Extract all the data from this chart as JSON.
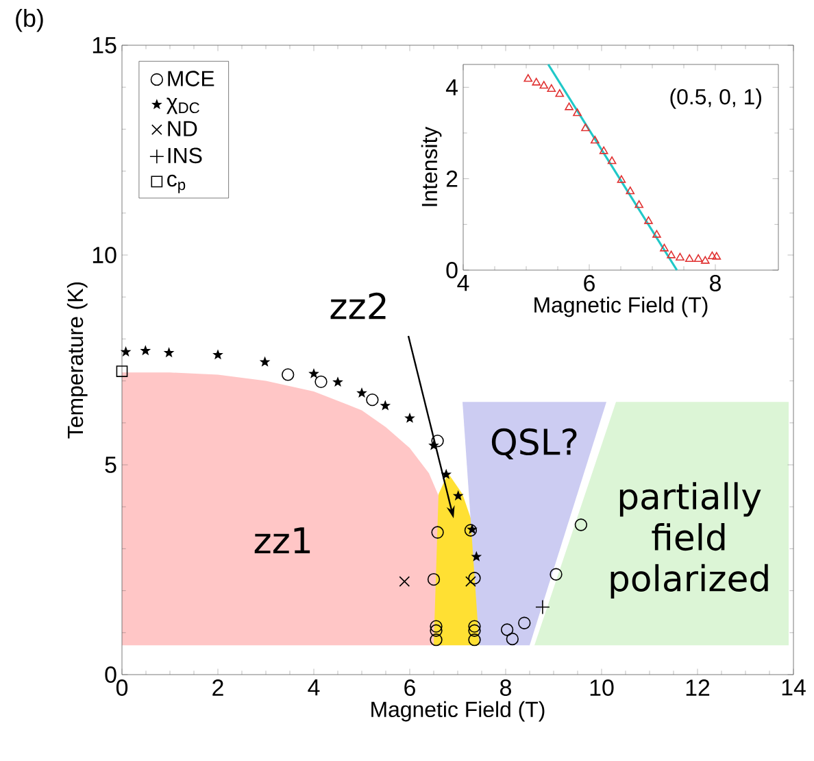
{
  "chart_data": [
    {
      "type": "scatter",
      "xlabel": "Magnetic Field (T)",
      "ylabel": "Temperature (K)",
      "xlim": [
        0,
        14
      ],
      "ylim": [
        0,
        15
      ],
      "xticks": [
        0,
        2,
        4,
        6,
        8,
        10,
        12,
        14
      ],
      "yticks": [
        0,
        5,
        10,
        15
      ],
      "legend": "top left",
      "series": [
        {
          "type": "scatter",
          "name": "MCE",
          "marker": "circle",
          "color": "#000000",
          "x": [
            3.46,
            4.15,
            5.22,
            6.58,
            6.58,
            7.27,
            6.5,
            7.35,
            6.55,
            6.55,
            6.55,
            7.35,
            7.35,
            7.35,
            8.03,
            8.14,
            8.39,
            9.05,
            9.57
          ],
          "values": [
            7.15,
            6.98,
            6.55,
            5.57,
            3.39,
            3.44,
            2.27,
            2.3,
            1.15,
            1.05,
            0.83,
            1.15,
            1.05,
            0.83,
            1.07,
            0.85,
            1.23,
            2.39,
            3.57
          ]
        },
        {
          "type": "scatter",
          "name": "χ$_{DC}$",
          "marker": "star",
          "color": "#000000",
          "x": [
            0.08,
            0.49,
            0.98,
            2.0,
            2.98,
            4.0,
            4.5,
            5.0,
            5.49,
            6.0,
            6.5,
            6.76,
            7.01,
            7.3,
            7.39
          ],
          "values": [
            7.69,
            7.72,
            7.67,
            7.62,
            7.45,
            7.17,
            6.97,
            6.71,
            6.41,
            6.11,
            5.46,
            4.77,
            4.26,
            3.46,
            2.81
          ]
        },
        {
          "type": "scatter",
          "name": "ND",
          "marker": "cross",
          "color": "#000000",
          "x": [
            5.89,
            7.27
          ],
          "values": [
            2.22,
            2.22
          ]
        },
        {
          "type": "scatter",
          "name": "INS",
          "marker": "plus",
          "color": "#000000",
          "x": [
            8.77
          ],
          "values": [
            1.61
          ]
        },
        {
          "type": "scatter",
          "name": "c$_{p}$",
          "marker": "square",
          "color": "#000000",
          "x": [
            0
          ],
          "values": [
            7.23
          ]
        }
      ],
      "annotations": [
        "(b)",
        "zz1",
        "zz2",
        "QSL?",
        "partially field polarized"
      ]
    },
    {
      "type": "scatter",
      "xlabel": "Magnetic Field (T)",
      "ylabel": "Intensity",
      "xlim": [
        4,
        9
      ],
      "ylim": [
        0,
        4.5
      ],
      "xticks": [
        4,
        6,
        8
      ],
      "yticks": [
        0,
        2,
        4
      ],
      "series": [
        {
          "type": "scatter",
          "marker": "triangle",
          "color": "#e03030",
          "x": [
            5.03,
            5.16,
            5.28,
            5.4,
            5.53,
            5.68,
            5.81,
            5.94,
            6.09,
            6.23,
            6.36,
            6.51,
            6.65,
            6.79,
            6.94,
            7.07,
            7.19,
            7.3,
            7.44,
            7.59,
            7.73,
            7.84,
            7.95,
            8.02
          ],
          "values": [
            4.18,
            4.1,
            4.03,
            3.96,
            3.85,
            3.56,
            3.43,
            3.1,
            2.83,
            2.6,
            2.38,
            1.97,
            1.72,
            1.42,
            1.07,
            0.77,
            0.47,
            0.32,
            0.27,
            0.24,
            0.24,
            0.2,
            0.3,
            0.29
          ]
        },
        {
          "type": "line",
          "color": "#20c8c8",
          "x": [
            5.35,
            7.39
          ],
          "values": [
            4.5,
            0
          ]
        }
      ],
      "annotations": [
        "(0.5, 0, 1)"
      ]
    }
  ]
}
